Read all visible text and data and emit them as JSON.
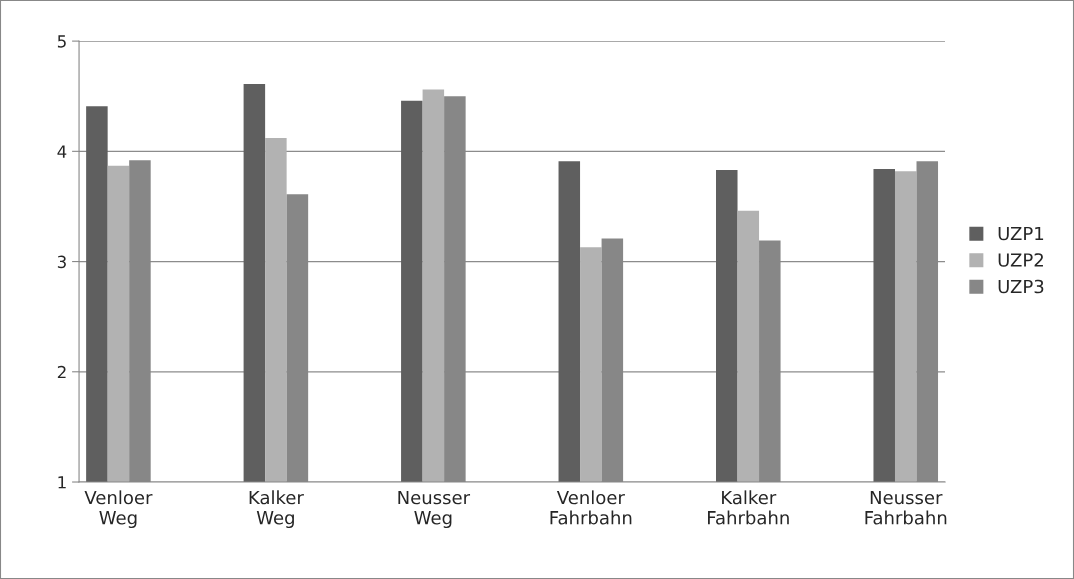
{
  "chart_data": {
    "type": "bar",
    "categories": [
      "Venloer\nWeg",
      null,
      "Kalker\nWeg",
      null,
      "Neusser\nWeg",
      null,
      "Venloer\nFahrbahn",
      null,
      "Kalker\nFahrbahn",
      null,
      "Neusser\nFahrbahn"
    ],
    "series": [
      {
        "name": "UZP1",
        "color": "#5f5f5f",
        "values": [
          4.41,
          null,
          4.61,
          null,
          4.46,
          null,
          3.91,
          null,
          3.83,
          null,
          3.84
        ]
      },
      {
        "name": "UZP2",
        "color": "#b2b2b2",
        "values": [
          3.87,
          null,
          4.12,
          null,
          4.56,
          null,
          3.13,
          null,
          3.46,
          null,
          3.82
        ]
      },
      {
        "name": "UZP3",
        "color": "#878787",
        "values": [
          3.92,
          null,
          3.61,
          null,
          4.5,
          null,
          3.21,
          null,
          3.19,
          null,
          3.91
        ]
      }
    ],
    "ylim": [
      1,
      5
    ],
    "yticks": [
      1,
      2,
      3,
      4,
      5
    ],
    "grid": "y",
    "legend": "right"
  }
}
